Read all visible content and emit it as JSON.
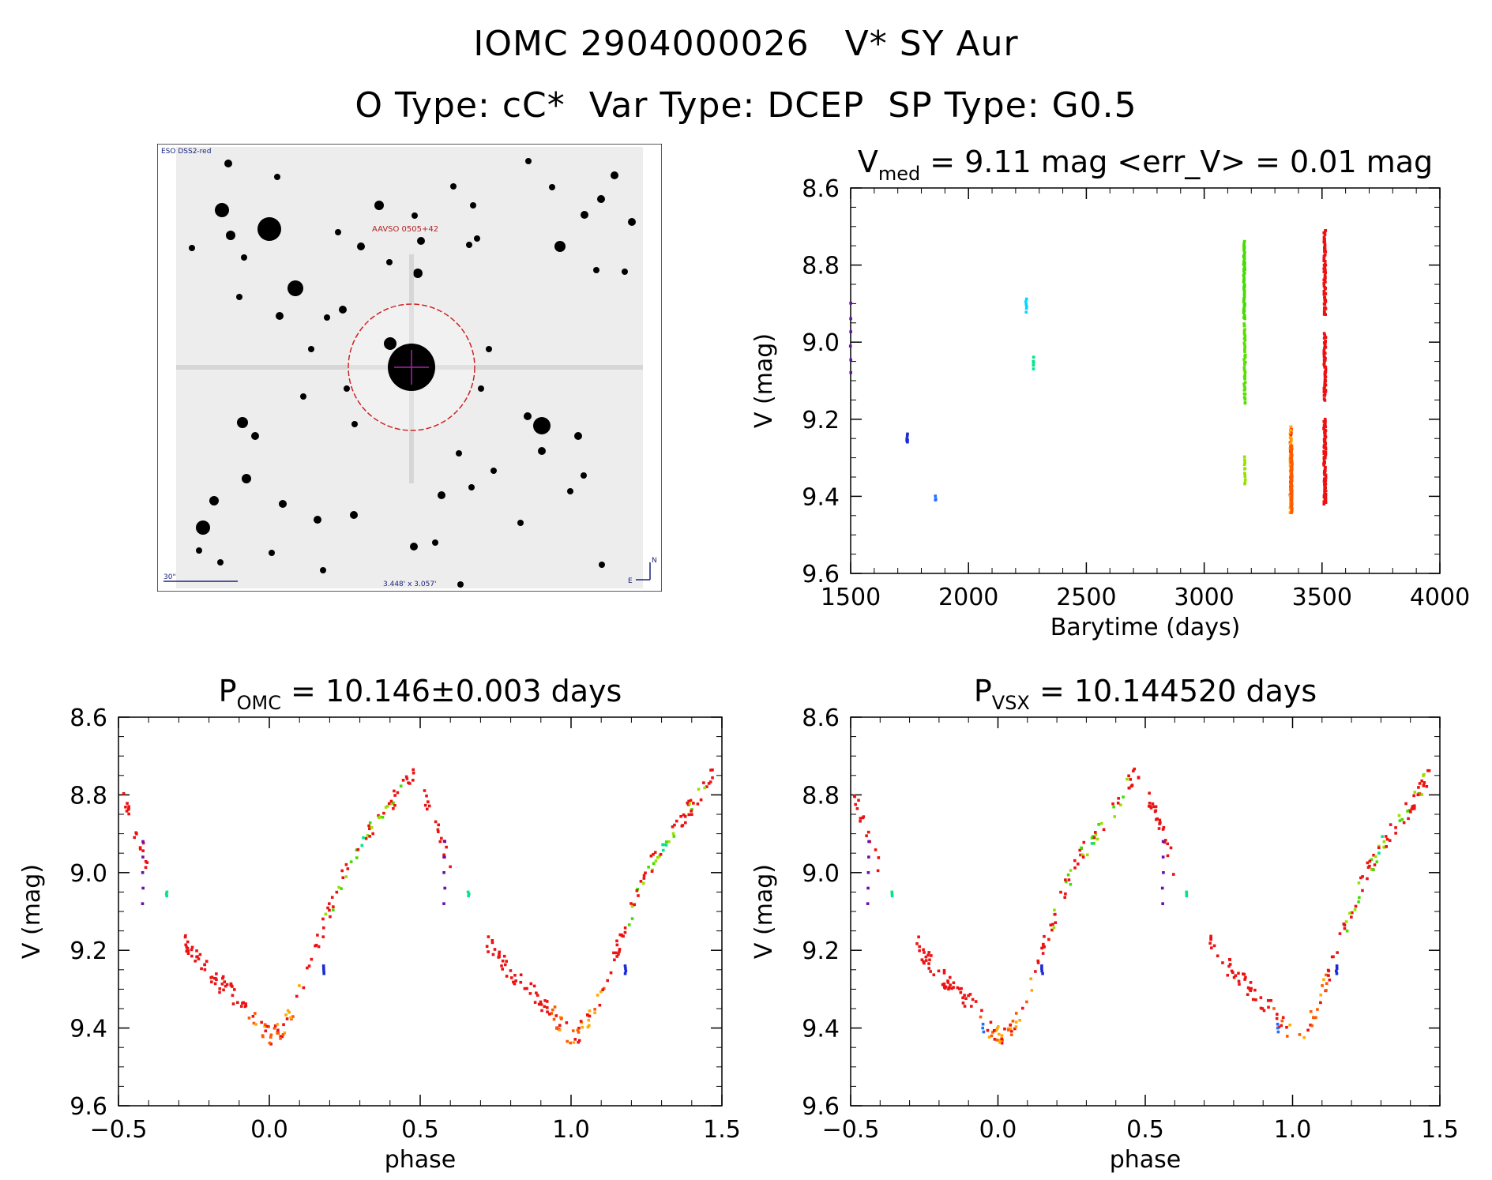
{
  "header": {
    "title_line1": "IOMC 2904000026   V* SY Aur",
    "title_line2": "O Type: cC*  Var Type: DCEP  SP Type: G0.5"
  },
  "finder_chart": {
    "survey_label": "ESO DSS2-red",
    "target_label": "AAVSO 0505+42",
    "scale_label": "30\"",
    "fov_label": "3.448' x 3.057'",
    "compass_n": "N",
    "compass_e": "E",
    "colors": {
      "circle": "#cc2222",
      "crosshair": "#aa22aa",
      "labels": "#1a237e",
      "target_label": "#b22222"
    }
  },
  "chart_data": [
    {
      "type": "scatter",
      "title_main": "V",
      "title_sub": "med",
      "title_rest": " = 9.11 mag <err_V> = 0.01 mag",
      "xlabel": "Barytime (days)",
      "ylabel": "V (mag)",
      "xlim": [
        1500,
        4000
      ],
      "ylim": [
        9.6,
        8.6
      ],
      "y_inverted": true,
      "xticks": [
        1500,
        2000,
        2500,
        3000,
        3500,
        4000
      ],
      "yticks": [
        8.6,
        8.8,
        9.0,
        9.2,
        9.4,
        9.6
      ],
      "groups": [
        {
          "name": "",
          "x": 1500,
          "xw": 3,
          "y": [
            8.9,
            9.08
          ],
          "n": 6,
          "color": "#6a0dad"
        },
        {
          "name": "",
          "x": 1740,
          "xw": 4,
          "y": [
            9.24,
            9.26
          ],
          "n": 6,
          "color": "#1a2bd6"
        },
        {
          "name": "",
          "x": 1860,
          "xw": 3,
          "y": [
            9.4,
            9.41
          ],
          "n": 3,
          "color": "#1f6fff"
        },
        {
          "name": "",
          "x": 2245,
          "xw": 4,
          "y": [
            8.89,
            8.92
          ],
          "n": 6,
          "color": "#00d8ff"
        },
        {
          "name": "",
          "x": 2275,
          "xw": 4,
          "y": [
            9.04,
            9.07
          ],
          "n": 5,
          "color": "#00e58a"
        },
        {
          "name": "",
          "x": 3170,
          "xw": 6,
          "y": [
            8.74,
            8.94
          ],
          "n": 60,
          "color": "#44dd00"
        },
        {
          "name": "",
          "x": 3172,
          "xw": 6,
          "y": [
            8.95,
            9.16
          ],
          "n": 45,
          "color": "#55e000"
        },
        {
          "name": "",
          "x": 3173,
          "xw": 5,
          "y": [
            9.3,
            9.37
          ],
          "n": 12,
          "color": "#99e000"
        },
        {
          "name": "",
          "x": 3368,
          "xw": 7,
          "y": [
            9.22,
            9.44
          ],
          "n": 90,
          "color": "#ffaa00"
        },
        {
          "name": "",
          "x": 3370,
          "xw": 6,
          "y": [
            9.27,
            9.44
          ],
          "n": 70,
          "color": "#ff5a00"
        },
        {
          "name": "",
          "x": 3512,
          "xw": 8,
          "y": [
            8.71,
            8.93
          ],
          "n": 70,
          "color": "#ee1111"
        },
        {
          "name": "",
          "x": 3512,
          "xw": 8,
          "y": [
            8.98,
            9.15
          ],
          "n": 60,
          "color": "#ee1111"
        },
        {
          "name": "",
          "x": 3512,
          "xw": 9,
          "y": [
            9.2,
            9.42
          ],
          "n": 90,
          "color": "#ee1111"
        }
      ]
    },
    {
      "type": "scatter",
      "title_main": "P",
      "title_sub": "OMC",
      "title_rest": " = 10.146±0.003 days",
      "xlabel": "phase",
      "ylabel": "V (mag)",
      "xlim": [
        -0.5,
        1.5
      ],
      "ylim": [
        9.6,
        8.6
      ],
      "y_inverted": true,
      "xticks": [
        -0.5,
        0.0,
        0.5,
        1.0,
        1.5
      ],
      "xtick_labels": [
        "−0.5",
        "0.0",
        "0.5",
        "1.0",
        "1.5"
      ],
      "yticks": [
        8.6,
        8.8,
        9.0,
        9.2,
        9.4,
        9.6
      ],
      "curve": {
        "phase": [
          -0.06,
          -0.03,
          0.0,
          0.03,
          0.06,
          0.09,
          0.12,
          0.16,
          0.2,
          0.24,
          0.28,
          0.32,
          0.36,
          0.4,
          0.44,
          0.47,
          0.5,
          0.52,
          0.55,
          0.58,
          0.62,
          0.68,
          0.74,
          0.8,
          0.86,
          0.9,
          0.94
        ],
        "v": [
          9.36,
          9.4,
          9.42,
          9.41,
          9.38,
          9.33,
          9.27,
          9.18,
          9.1,
          9.02,
          8.96,
          8.91,
          8.87,
          8.83,
          8.78,
          8.74,
          8.78,
          8.82,
          8.88,
          8.94,
          9.05,
          9.13,
          9.2,
          9.26,
          9.3,
          9.33,
          9.36
        ]
      },
      "extra_points": [
        {
          "phase": -0.42,
          "v": [
            8.92,
            9.08
          ],
          "n": 5,
          "color": "#6a0dad"
        },
        {
          "phase": -0.34,
          "v": [
            9.05,
            9.06
          ],
          "n": 3,
          "color": "#00e58a"
        },
        {
          "phase": 0.18,
          "v": [
            9.24,
            9.26
          ],
          "n": 4,
          "color": "#1a2bd6"
        }
      ]
    },
    {
      "type": "scatter",
      "title_main": "P",
      "title_sub": "VSX",
      "title_rest": " = 10.144520 days",
      "xlabel": "phase",
      "ylabel": "V (mag)",
      "xlim": [
        -0.5,
        1.5
      ],
      "ylim": [
        9.6,
        8.6
      ],
      "y_inverted": true,
      "xticks": [
        -0.5,
        0.0,
        0.5,
        1.0,
        1.5
      ],
      "xtick_labels": [
        "−0.5",
        "0.0",
        "0.5",
        "1.0",
        "1.5"
      ],
      "yticks": [
        8.6,
        8.8,
        9.0,
        9.2,
        9.4,
        9.6
      ],
      "curve": {
        "phase": [
          -0.06,
          -0.03,
          0.0,
          0.03,
          0.06,
          0.09,
          0.12,
          0.16,
          0.2,
          0.24,
          0.28,
          0.32,
          0.36,
          0.4,
          0.44,
          0.47,
          0.5,
          0.52,
          0.55,
          0.58,
          0.62,
          0.68,
          0.74,
          0.8,
          0.86,
          0.9,
          0.94
        ],
        "v": [
          9.36,
          9.4,
          9.42,
          9.41,
          9.38,
          9.33,
          9.27,
          9.18,
          9.1,
          9.02,
          8.96,
          8.91,
          8.87,
          8.83,
          8.78,
          8.74,
          8.78,
          8.82,
          8.88,
          8.94,
          9.05,
          9.13,
          9.2,
          9.26,
          9.3,
          9.33,
          9.36
        ]
      },
      "extra_points": [
        {
          "phase": -0.44,
          "v": [
            8.92,
            9.08
          ],
          "n": 5,
          "color": "#6a0dad"
        },
        {
          "phase": -0.36,
          "v": [
            9.05,
            9.06
          ],
          "n": 3,
          "color": "#00e58a"
        },
        {
          "phase": 0.15,
          "v": [
            9.24,
            9.26
          ],
          "n": 4,
          "color": "#1a2bd6"
        },
        {
          "phase": -0.05,
          "v": [
            9.39,
            9.41
          ],
          "n": 3,
          "color": "#1f6fff"
        }
      ]
    }
  ]
}
